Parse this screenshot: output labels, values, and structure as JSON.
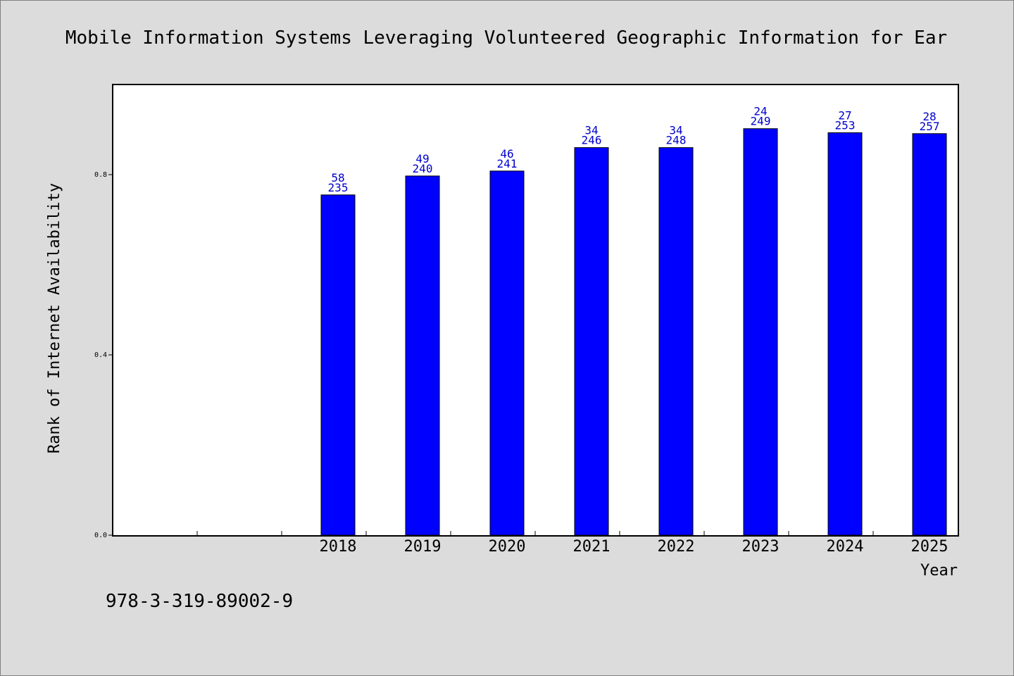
{
  "chart_data": {
    "type": "bar",
    "title": "Mobile Information Systems Leveraging Volunteered Geographic Information for Ear",
    "xlabel": "Year",
    "ylabel": "Rank of Internet Availability",
    "categories": [
      "",
      "",
      "2018",
      "2019",
      "2020",
      "2021",
      "2022",
      "2023",
      "2024",
      "2025"
    ],
    "values": [
      null,
      null,
      0.755,
      0.797,
      0.808,
      0.86,
      0.86,
      0.902,
      0.893,
      0.891
    ],
    "labels_top": [
      "",
      "",
      "58",
      "49",
      "46",
      "34",
      "34",
      "24",
      "27",
      "28"
    ],
    "labels_bottom": [
      "",
      "",
      "235",
      "240",
      "241",
      "246",
      "248",
      "249",
      "253",
      "257"
    ],
    "ylim": [
      0,
      1.0
    ],
    "yticks": [
      0.0,
      0.4,
      0.8
    ],
    "ytick_labels": [
      "0.0",
      "0.4",
      "0.8"
    ],
    "bar_color": "#0000ff",
    "label_color": "#0000cc",
    "background": "#dcdcdc",
    "plot_background": "#ffffff",
    "grid": false,
    "legend": "none"
  },
  "footer": {
    "isbn": "978-3-319-89002-9"
  }
}
